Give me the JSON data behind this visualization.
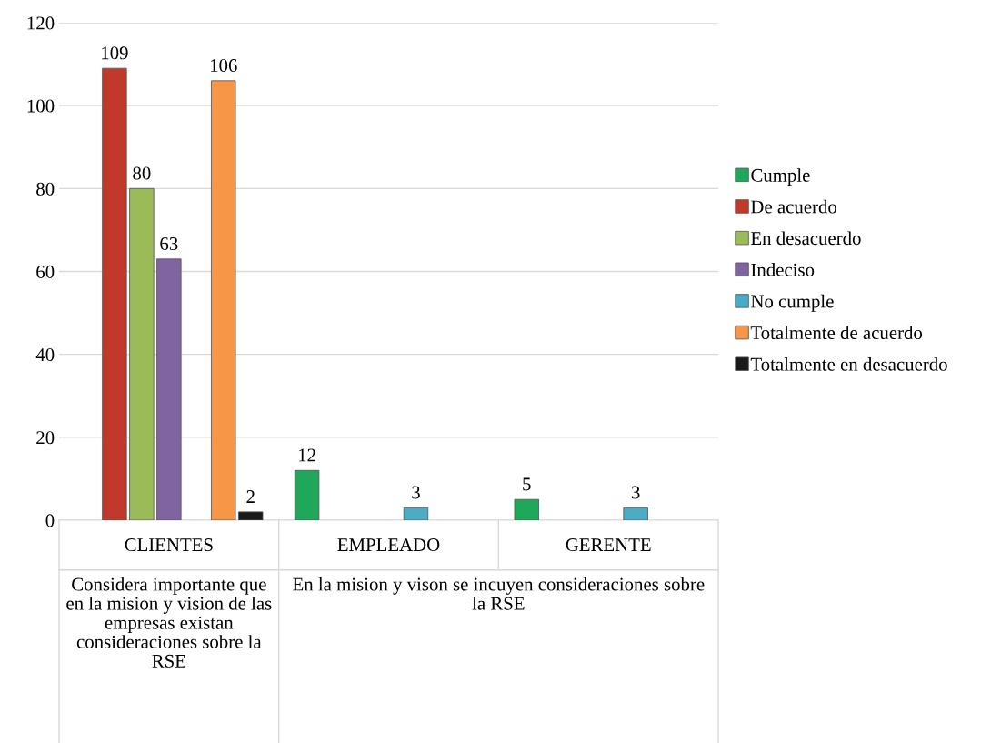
{
  "chart_data": {
    "type": "bar",
    "categories": [
      "CLIENTES",
      "EMPLEADO",
      "GERENTE"
    ],
    "series": [
      {
        "name": "Cumple",
        "color": "#1fa85a",
        "values": [
          null,
          12,
          5
        ]
      },
      {
        "name": "De acuerdo",
        "color": "#c0392b",
        "values": [
          109,
          null,
          null
        ]
      },
      {
        "name": "En desacuerdo",
        "color": "#9bbb59",
        "values": [
          80,
          null,
          null
        ]
      },
      {
        "name": "Indeciso",
        "color": "#8064a2",
        "values": [
          63,
          null,
          null
        ]
      },
      {
        "name": "No cumple",
        "color": "#4bacc6",
        "values": [
          null,
          3,
          3
        ]
      },
      {
        "name": "Totalmente de acuerdo",
        "color": "#f79646",
        "values": [
          106,
          null,
          null
        ]
      },
      {
        "name": "Totalmente en desacuerdo",
        "color": "#1a1a1a",
        "values": [
          2,
          null,
          null
        ]
      }
    ],
    "ylim": [
      0,
      120
    ],
    "yticks": [
      0,
      20,
      40,
      60,
      80,
      100,
      120
    ],
    "grid": "y",
    "legend": "right",
    "data_labels": true,
    "annotations": [
      "Considera importante que en la mision y vision de las empresas existan consideraciones sobre la RSE",
      "En la mision y vison se incuyen consideraciones sobre la RSE"
    ]
  }
}
